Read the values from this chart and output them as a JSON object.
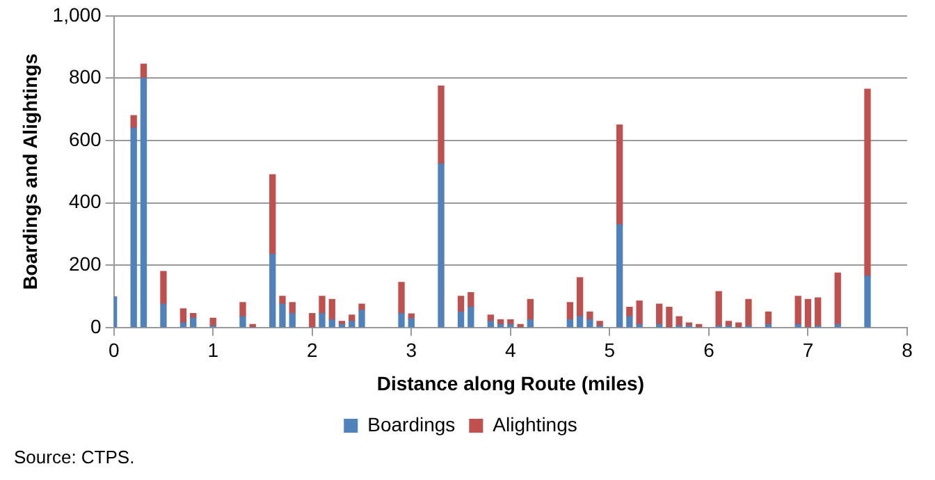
{
  "chart_data": {
    "type": "bar",
    "stacked": true,
    "xlabel": "Distance along Route (miles)",
    "ylabel": "Boardings and Alightings",
    "x": [
      0,
      0.2,
      0.3,
      0.5,
      0.7,
      0.8,
      1.0,
      1.3,
      1.4,
      1.6,
      1.7,
      1.8,
      2.0,
      2.1,
      2.2,
      2.3,
      2.4,
      2.5,
      2.9,
      3.0,
      3.3,
      3.5,
      3.6,
      3.8,
      3.9,
      4.0,
      4.1,
      4.2,
      4.6,
      4.7,
      4.8,
      4.9,
      5.1,
      5.2,
      5.3,
      5.5,
      5.6,
      5.7,
      5.8,
      5.9,
      6.1,
      6.2,
      6.3,
      6.4,
      6.6,
      6.9,
      7.0,
      7.1,
      7.3,
      7.6
    ],
    "series": [
      {
        "name": "Boardings",
        "color": "#4f81bd",
        "values": [
          98,
          640,
          800,
          75,
          15,
          30,
          5,
          35,
          0,
          235,
          75,
          45,
          0,
          45,
          25,
          10,
          20,
          55,
          45,
          28,
          525,
          50,
          65,
          20,
          10,
          10,
          0,
          25,
          25,
          35,
          25,
          5,
          330,
          35,
          10,
          10,
          0,
          5,
          5,
          0,
          5,
          5,
          0,
          5,
          10,
          10,
          0,
          5,
          10,
          165
        ]
      },
      {
        "name": "Alightings",
        "color": "#c0504d",
        "values": [
          0,
          40,
          45,
          105,
          45,
          15,
          25,
          45,
          10,
          255,
          25,
          35,
          45,
          55,
          65,
          10,
          20,
          20,
          100,
          16,
          250,
          50,
          47,
          20,
          15,
          15,
          10,
          65,
          55,
          125,
          25,
          15,
          320,
          30,
          75,
          65,
          65,
          30,
          10,
          10,
          110,
          15,
          15,
          85,
          40,
          90,
          90,
          90,
          165,
          600
        ]
      }
    ],
    "xlim": [
      0,
      8
    ],
    "xticks": [
      0,
      1,
      2,
      3,
      4,
      5,
      6,
      7,
      8
    ],
    "ylim": [
      0,
      1000
    ],
    "yticks": [
      0,
      200,
      400,
      600,
      800,
      {
        "value": 1000,
        "label": "1,000"
      }
    ],
    "grid": "y",
    "legend": "bottom",
    "annotations": [
      "Source: CTPS."
    ]
  }
}
